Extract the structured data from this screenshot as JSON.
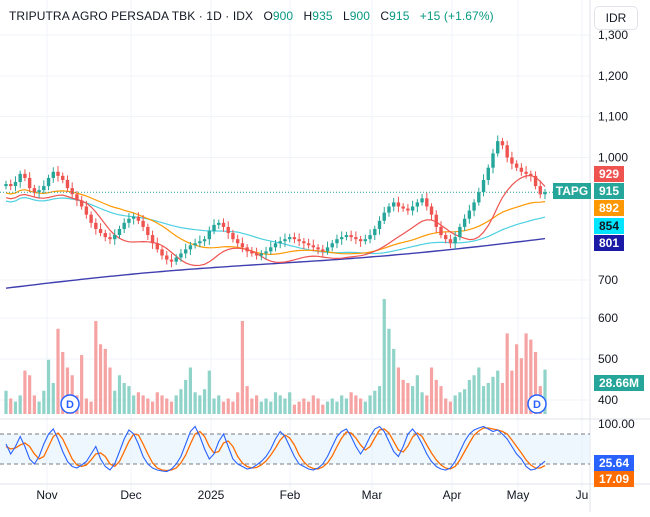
{
  "legend": {
    "symbol_name": "TRIPUTRA AGRO PERSADA TBK",
    "interval": "1D",
    "exchange": "IDX",
    "open_label": "O",
    "open": "900",
    "high_label": "H",
    "high": "935",
    "low_label": "L",
    "low": "900",
    "close_label": "C",
    "close": "915",
    "change": "+15 (+1.67%)"
  },
  "currency_button": "IDR",
  "colors": {
    "up": "#26a69a",
    "down": "#ef5350",
    "up_vol": "#8fd3c9",
    "down_vol": "#f5a3a3",
    "ma_red": "#ef5350",
    "ma_orange": "#ff9800",
    "ma_cyan": "#4dd0e1",
    "ma_indigo": "#3f3fb0",
    "stoch_k": "#2962ff",
    "stoch_d": "#ff6d00",
    "grid": "#f0f3fa",
    "text": "#131722"
  },
  "chart_data": [
    {
      "type": "candlestick",
      "y_ticks": [
        "1,300",
        "1,200",
        "1,100",
        "1,000",
        "700",
        "600",
        "500",
        "400"
      ],
      "y_ticks_numeric": [
        1300,
        1200,
        1100,
        1000,
        700,
        600,
        500,
        400
      ],
      "x_ticks": [
        "Nov",
        "Dec",
        "2025",
        "Feb",
        "Mar",
        "Apr",
        "May",
        "Ju"
      ],
      "badges": {
        "ma_red": "929",
        "last_symbol": "TAPG",
        "last_price": "915",
        "ma_orange": "892",
        "ma_cyan": "854",
        "ma_indigo": "801",
        "volume": "28.66M"
      },
      "last_price_value": 915,
      "dividend_marker": "D",
      "close": [
        935,
        930,
        940,
        960,
        950,
        925,
        915,
        920,
        930,
        950,
        965,
        955,
        945,
        925,
        910,
        895,
        880,
        860,
        840,
        825,
        815,
        805,
        800,
        810,
        825,
        840,
        850,
        855,
        845,
        830,
        810,
        790,
        775,
        760,
        750,
        745,
        755,
        765,
        775,
        785,
        790,
        795,
        800,
        820,
        835,
        840,
        830,
        815,
        800,
        790,
        780,
        770,
        765,
        760,
        765,
        770,
        780,
        790,
        795,
        800,
        805,
        800,
        795,
        790,
        785,
        780,
        775,
        770,
        780,
        790,
        800,
        805,
        810,
        805,
        800,
        795,
        800,
        810,
        825,
        845,
        865,
        880,
        890,
        880,
        875,
        870,
        880,
        890,
        900,
        880,
        860,
        830,
        810,
        800,
        790,
        805,
        830,
        850,
        870,
        890,
        915,
        945,
        975,
        1010,
        1040,
        1030,
        1000,
        985,
        975,
        965,
        960,
        955,
        930,
        910,
        915
      ],
      "volume_M": [
        15,
        10,
        8,
        12,
        28,
        25,
        12,
        8,
        15,
        35,
        20,
        55,
        40,
        30,
        25,
        12,
        38,
        10,
        8,
        60,
        45,
        42,
        30,
        15,
        25,
        20,
        18,
        12,
        14,
        12,
        10,
        8,
        14,
        12,
        10,
        8,
        12,
        16,
        22,
        30,
        14,
        12,
        16,
        28,
        10,
        12,
        8,
        10,
        8,
        14,
        60,
        18,
        10,
        12,
        8,
        10,
        8,
        14,
        12,
        10,
        14,
        6,
        8,
        10,
        8,
        12,
        10,
        6,
        8,
        10,
        8,
        12,
        10,
        14,
        12,
        10,
        8,
        12,
        15,
        18,
        75,
        55,
        42,
        30,
        22,
        20,
        18,
        25,
        14,
        12,
        30,
        22,
        18,
        10,
        8,
        12,
        14,
        16,
        22,
        25,
        30,
        18,
        20,
        24,
        28,
        20,
        52,
        28,
        45,
        36,
        52,
        48,
        40,
        18,
        28.66
      ],
      "ma_red_last": 929,
      "ma_orange_last": 892,
      "ma_cyan_last": 854,
      "ma_indigo_last": 801
    },
    {
      "type": "line",
      "name": "stochastic",
      "y_ticks": [
        "100.00"
      ],
      "y_range": [
        0,
        100
      ],
      "bands": [
        80,
        20
      ],
      "badges": {
        "k": "25.64",
        "d": "17.09"
      },
      "k_values": [
        60,
        40,
        55,
        75,
        55,
        30,
        20,
        35,
        60,
        80,
        90,
        70,
        45,
        25,
        15,
        12,
        18,
        25,
        40,
        55,
        30,
        15,
        8,
        20,
        45,
        70,
        88,
        80,
        60,
        35,
        20,
        12,
        8,
        6,
        5,
        10,
        20,
        35,
        60,
        85,
        95,
        75,
        50,
        30,
        40,
        65,
        80,
        55,
        30,
        20,
        15,
        10,
        12,
        18,
        25,
        35,
        50,
        70,
        85,
        75,
        55,
        35,
        20,
        15,
        10,
        8,
        12,
        20,
        35,
        55,
        75,
        85,
        90,
        75,
        55,
        40,
        55,
        75,
        90,
        95,
        85,
        65,
        45,
        35,
        55,
        80,
        90,
        78,
        60,
        40,
        25,
        15,
        10,
        8,
        12,
        25,
        45,
        65,
        80,
        88,
        92,
        95,
        90,
        85,
        88,
        80,
        70,
        55,
        40,
        30,
        15,
        8,
        10,
        18,
        25.64
      ],
      "d_values": [
        55,
        50,
        52,
        58,
        62,
        55,
        40,
        30,
        35,
        55,
        75,
        82,
        70,
        50,
        30,
        18,
        15,
        18,
        28,
        40,
        42,
        35,
        20,
        15,
        25,
        45,
        65,
        80,
        78,
        60,
        40,
        22,
        12,
        8,
        7,
        8,
        12,
        22,
        38,
        60,
        80,
        85,
        75,
        55,
        42,
        45,
        62,
        66,
        55,
        35,
        22,
        15,
        12,
        13,
        18,
        26,
        38,
        52,
        68,
        78,
        72,
        58,
        38,
        24,
        15,
        11,
        10,
        14,
        22,
        36,
        55,
        72,
        84,
        82,
        72,
        58,
        48,
        55,
        72,
        88,
        90,
        82,
        65,
        48,
        44,
        56,
        74,
        82,
        75,
        58,
        42,
        28,
        18,
        12,
        10,
        15,
        28,
        45,
        62,
        78,
        86,
        92,
        92,
        90,
        88,
        85,
        80,
        68,
        55,
        42,
        28,
        18,
        12,
        12,
        17.09
      ]
    }
  ]
}
